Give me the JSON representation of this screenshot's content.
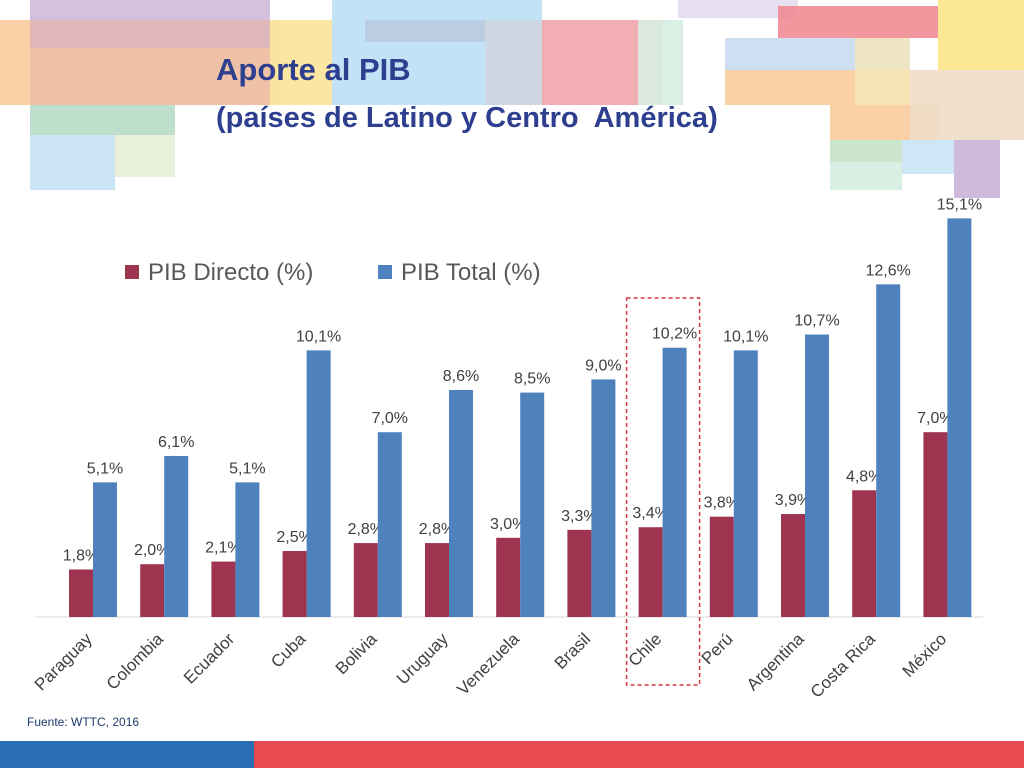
{
  "slide": {
    "title": "Aporte al PIB",
    "subtitle": "(países de Latino y Centro  América)",
    "source": "Fuente: WTTC, 2016"
  },
  "colors": {
    "directo": "#9e344f",
    "total": "#4f81bd",
    "highlight_border": "#d9363e",
    "title": "#2e3f8f"
  },
  "chart_data": {
    "type": "bar",
    "title": "Aporte al PIB (países de Latino y Centro  América)",
    "categories": [
      "Paraguay",
      "Colombia",
      "Ecuador",
      "Cuba",
      "Bolivia",
      "Uruguay",
      "Venezuela",
      "Brasil",
      "Chile",
      "Perú",
      "Argentina",
      "Costa Rica",
      "México"
    ],
    "series": [
      {
        "name": "PIB Directo (%)",
        "values": [
          1.8,
          2.0,
          2.1,
          2.5,
          2.8,
          2.8,
          3.0,
          3.3,
          3.4,
          3.8,
          3.9,
          4.8,
          7.0
        ],
        "labels": [
          "1,8%",
          "2,0%",
          "2,1%",
          "2,5%",
          "2,8%",
          "2,8%",
          "3,0%",
          "3,3%",
          "3,4%",
          "3,8%",
          "3,9%",
          "4,8%",
          "7,0%"
        ]
      },
      {
        "name": "PIB Total (%)",
        "values": [
          5.1,
          6.1,
          5.1,
          10.1,
          7.0,
          8.6,
          8.5,
          9.0,
          10.2,
          10.1,
          10.7,
          12.6,
          15.1
        ],
        "labels": [
          "5,1%",
          "6,1%",
          "5,1%",
          "10,1%",
          "7,0%",
          "8,6%",
          "8,5%",
          "9,0%",
          "10,2%",
          "10,1%",
          "10,7%",
          "12,6%",
          "15,1%"
        ]
      }
    ],
    "highlighted_category": "Chile",
    "xlabel": "",
    "ylabel": "",
    "ylim": [
      0,
      16
    ],
    "grid": false,
    "legend": "top-left"
  }
}
